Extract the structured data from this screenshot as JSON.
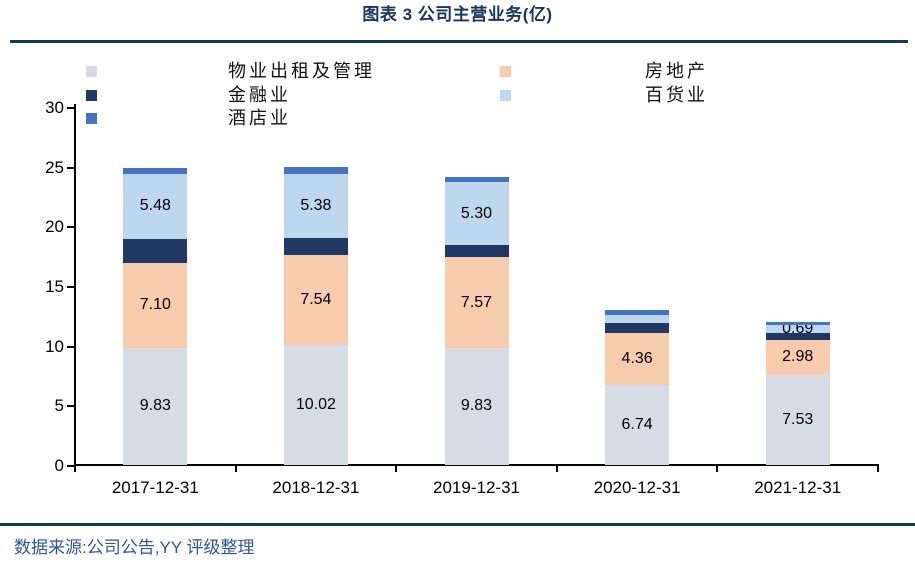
{
  "title": "图表 3 公司主营业务(亿)",
  "source_note": "数据来源:公司公告,YY 评级整理",
  "colors": {
    "title_text": "#17365D",
    "rule": "#17365D",
    "source_text": "#2F5597",
    "axis": "#000000",
    "bar_label_text": "#000000"
  },
  "chart_data": {
    "type": "bar",
    "stacked": true,
    "title": "图表 3 公司主营业务(亿)",
    "xlabel": "",
    "ylabel": "",
    "ylim": [
      0,
      30
    ],
    "yticks": [
      0,
      5,
      10,
      15,
      20,
      25,
      30
    ],
    "grid": false,
    "legend_position": "top-two-columns",
    "categories": [
      "2017-12-31",
      "2018-12-31",
      "2019-12-31",
      "2020-12-31",
      "2021-12-31"
    ],
    "series": [
      {
        "name": "物业出租及管理",
        "slug": "property-rental-management",
        "color": "#D6DCE5",
        "values": [
          9.83,
          10.02,
          9.83,
          6.74,
          7.53
        ],
        "labels": [
          "9.83",
          "10.02",
          "9.83",
          "6.74",
          "7.53"
        ]
      },
      {
        "name": "房地产",
        "slug": "real-estate",
        "color": "#F8CBAD",
        "values": [
          7.1,
          7.54,
          7.57,
          4.36,
          2.98
        ],
        "labels": [
          "7.10",
          "7.54",
          "7.57",
          "4.36",
          "2.98"
        ]
      },
      {
        "name": "金融业",
        "slug": "finance",
        "color": "#1F3864",
        "values": [
          2.0,
          1.45,
          1.0,
          0.8,
          0.55
        ],
        "labels": [
          null,
          null,
          null,
          null,
          null
        ]
      },
      {
        "name": "百货业",
        "slug": "department-store",
        "color": "#BDD7EE",
        "values": [
          5.48,
          5.38,
          5.3,
          0.7,
          0.69
        ],
        "labels": [
          "5.48",
          "5.38",
          "5.30",
          null,
          "0.69"
        ]
      },
      {
        "name": "酒店业",
        "slug": "hotel",
        "color": "#4472C4",
        "values": [
          0.5,
          0.55,
          0.45,
          0.4,
          0.25
        ],
        "labels": [
          null,
          null,
          null,
          null,
          null
        ]
      }
    ]
  }
}
